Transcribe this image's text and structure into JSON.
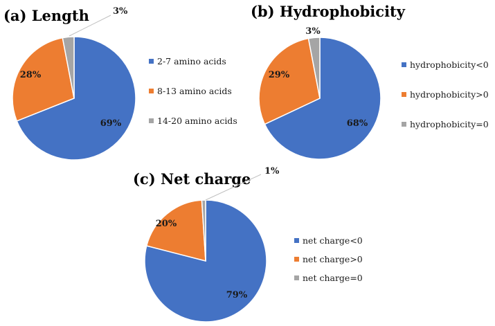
{
  "chart_data": [
    {
      "type": "pie",
      "title": "(a) Length",
      "categories": [
        "2-7 amino acids",
        "8-13 amino acids",
        "14-20 amino acids"
      ],
      "values": [
        69,
        28,
        3
      ],
      "labels": [
        "69%",
        "28%",
        "3%"
      ],
      "colors": [
        "#4472C4",
        "#ED7D31",
        "#A5A5A5"
      ],
      "legend_position": "right"
    },
    {
      "type": "pie",
      "title": "(b) Hydrophobicity",
      "categories": [
        "hydrophobicity<0",
        "hydrophobicity>0",
        "hydrophobicity=0"
      ],
      "values": [
        68,
        29,
        3
      ],
      "labels": [
        "68%",
        "29%",
        "3%"
      ],
      "colors": [
        "#4472C4",
        "#ED7D31",
        "#A5A5A5"
      ],
      "legend_position": "right"
    },
    {
      "type": "pie",
      "title": "(c) Net charge",
      "categories": [
        "net charge<0",
        "net charge>0",
        "net charge=0"
      ],
      "values": [
        79,
        20,
        1
      ],
      "labels": [
        "79%",
        "20%",
        "1%"
      ],
      "colors": [
        "#4472C4",
        "#ED7D31",
        "#A5A5A5"
      ],
      "legend_position": "right"
    }
  ]
}
